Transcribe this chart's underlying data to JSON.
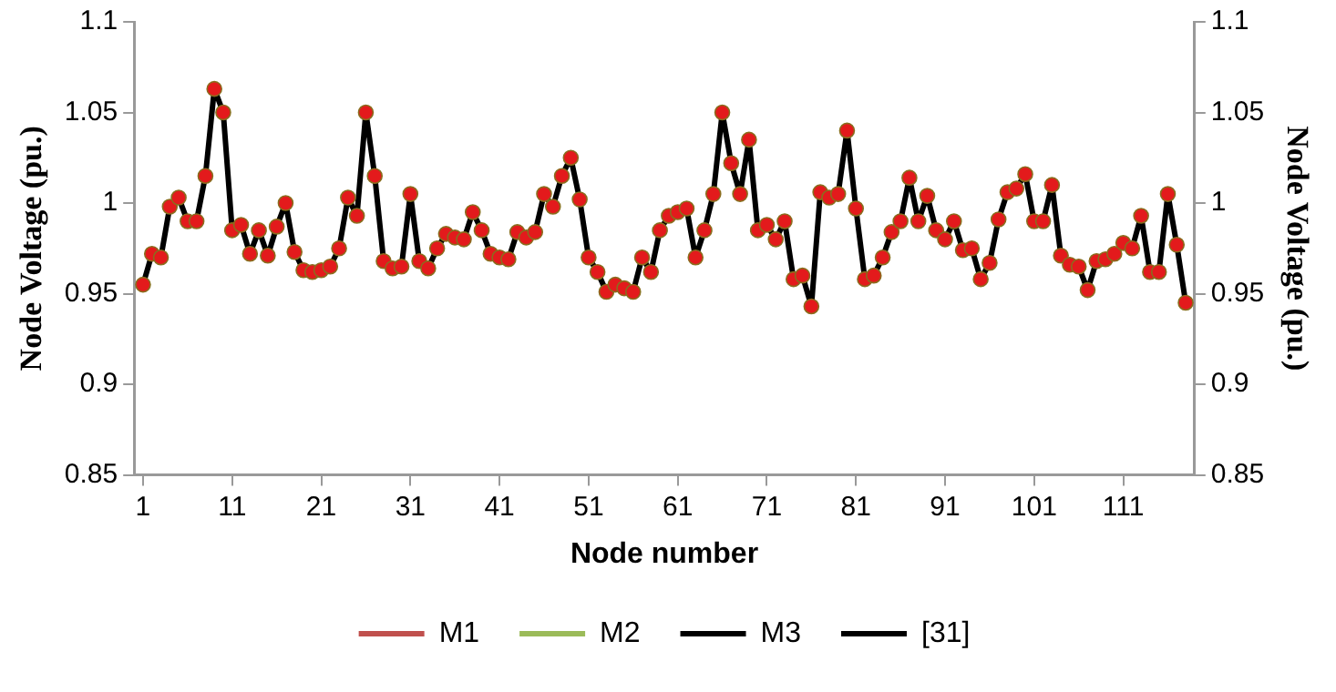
{
  "chart_data": {
    "type": "line",
    "xlabel": "Node number",
    "ylabel": "Node Voltage (pu.)",
    "y2label": "Node Voltage (pu.)",
    "x": [
      1,
      2,
      3,
      4,
      5,
      6,
      7,
      8,
      9,
      10,
      11,
      12,
      13,
      14,
      15,
      16,
      17,
      18,
      19,
      20,
      21,
      22,
      23,
      24,
      25,
      26,
      27,
      28,
      29,
      30,
      31,
      32,
      33,
      34,
      35,
      36,
      37,
      38,
      39,
      40,
      41,
      42,
      43,
      44,
      45,
      46,
      47,
      48,
      49,
      50,
      51,
      52,
      53,
      54,
      55,
      56,
      57,
      58,
      59,
      60,
      61,
      62,
      63,
      64,
      65,
      66,
      67,
      68,
      69,
      70,
      71,
      72,
      73,
      74,
      75,
      76,
      77,
      78,
      79,
      80,
      81,
      82,
      83,
      84,
      85,
      86,
      87,
      88,
      89,
      90,
      91,
      92,
      93,
      94,
      95,
      96,
      97,
      98,
      99,
      100,
      101,
      102,
      103,
      104,
      105,
      106,
      107,
      108,
      109,
      110,
      111,
      112,
      113,
      114,
      115,
      116,
      117,
      118
    ],
    "xlim": [
      0,
      119
    ],
    "xticks": [
      1,
      11,
      21,
      31,
      41,
      51,
      61,
      71,
      81,
      91,
      101,
      111
    ],
    "ylim": [
      0.85,
      1.1
    ],
    "yticks": [
      0.85,
      0.9,
      0.95,
      1,
      1.05,
      1.1
    ],
    "y2lim": [
      0.85,
      1.1
    ],
    "y2ticks": [
      0.85,
      0.9,
      0.95,
      1,
      1.05,
      1.1
    ],
    "grid": false,
    "legend": "bottom",
    "series": [
      {
        "name": "M1",
        "color": "#c0504d",
        "marker": "square",
        "values": [
          null,
          null,
          null,
          null,
          null,
          null,
          null,
          null,
          null,
          null,
          null,
          null,
          null,
          null,
          null,
          null,
          null,
          null,
          null,
          null,
          null,
          null,
          null,
          null,
          null,
          null,
          null,
          null,
          null,
          null,
          null,
          null,
          null,
          null,
          null,
          null,
          null,
          null,
          null,
          null,
          null,
          null,
          null,
          null,
          null,
          null,
          null,
          null,
          null,
          null,
          null,
          null,
          null,
          null,
          null,
          null,
          null,
          null,
          null,
          null,
          null,
          null,
          null,
          null,
          null,
          null,
          null,
          null,
          null,
          null,
          null,
          null,
          null,
          null,
          null,
          null,
          null,
          null,
          null,
          null,
          null,
          null,
          null,
          null,
          null,
          null,
          null,
          null,
          null,
          null,
          null,
          null,
          null,
          null,
          null,
          null,
          null,
          null,
          null,
          null,
          null,
          null,
          null,
          null,
          null,
          null,
          null,
          null,
          null,
          null,
          null,
          null,
          null,
          null,
          null,
          null,
          null,
          null
        ]
      },
      {
        "name": "M2",
        "color": "#9bbb59",
        "marker": "triangle",
        "values": [
          null,
          null,
          null,
          null,
          null,
          null,
          null,
          null,
          null,
          null,
          null,
          null,
          null,
          null,
          null,
          null,
          null,
          null,
          null,
          null,
          null,
          null,
          null,
          null,
          null,
          null,
          null,
          null,
          null,
          null,
          null,
          null,
          null,
          null,
          null,
          null,
          null,
          null,
          null,
          null,
          null,
          null,
          null,
          null,
          null,
          null,
          null,
          null,
          null,
          null,
          null,
          null,
          null,
          null,
          null,
          null,
          null,
          null,
          null,
          null,
          null,
          null,
          null,
          null,
          null,
          null,
          null,
          null,
          null,
          null,
          null,
          null,
          null,
          null,
          null,
          null,
          null,
          null,
          null,
          null,
          null,
          null,
          null,
          null,
          null,
          null,
          null,
          null,
          null,
          null,
          null,
          null,
          null,
          null,
          null,
          null,
          null,
          null,
          null,
          null,
          null,
          null,
          null,
          null,
          null,
          null,
          null,
          null,
          null,
          null,
          null,
          null,
          null,
          null,
          null,
          null,
          null,
          null
        ]
      },
      {
        "name": "M3",
        "color": "#000000",
        "marker": "circle",
        "values": [
          null,
          null,
          null,
          null,
          null,
          null,
          null,
          null,
          null,
          null,
          null,
          null,
          null,
          null,
          null,
          null,
          null,
          null,
          null,
          null,
          null,
          null,
          null,
          null,
          null,
          null,
          null,
          null,
          null,
          null,
          null,
          null,
          null,
          null,
          null,
          null,
          null,
          null,
          null,
          null,
          null,
          null,
          null,
          null,
          null,
          null,
          null,
          null,
          null,
          null,
          null,
          null,
          null,
          null,
          null,
          null,
          null,
          null,
          null,
          null,
          null,
          null,
          null,
          null,
          null,
          null,
          null,
          null,
          null,
          null,
          null,
          null,
          null,
          null,
          null,
          null,
          null,
          null,
          null,
          null,
          null,
          null,
          null,
          null,
          null,
          null,
          null,
          null,
          null,
          null,
          null,
          null,
          null,
          null,
          null,
          null,
          null,
          null,
          null,
          null,
          null,
          null,
          null,
          null,
          null,
          null,
          null,
          null,
          null,
          null,
          null,
          null,
          null,
          null,
          null,
          null,
          null,
          null
        ]
      },
      {
        "name": "[31]",
        "color": "#000000",
        "marker": "circle",
        "colors": [
          "#e31a1c",
          "#e31a1c",
          "#e31a1c",
          "#e31a1c",
          "#e31a1c",
          "#e31a1c",
          "#e31a1c",
          "#e31a1c",
          "#e31a1c",
          "#e31a1c",
          "#e31a1c",
          "#e31a1c",
          "#e31a1c",
          "#e31a1c",
          "#e31a1c",
          "#e31a1c",
          "#e31a1c",
          "#e31a1c",
          "#e31a1c",
          "#e31a1c",
          "#e31a1c",
          "#e31a1c",
          "#e31a1c",
          "#e31a1c",
          "#e31a1c",
          "#e31a1c",
          "#e31a1c",
          "#e31a1c",
          "#e31a1c",
          "#e31a1c",
          "#e31a1c",
          "#e31a1c",
          "#e31a1c",
          "#e31a1c",
          "#e31a1c",
          "#e31a1c",
          "#e31a1c",
          "#e31a1c",
          "#e31a1c",
          "#e31a1c",
          "#e31a1c",
          "#e31a1c",
          "#e31a1c",
          "#e31a1c",
          "#e31a1c",
          "#e31a1c",
          "#e31a1c",
          "#e31a1c",
          "#e31a1c",
          "#e31a1c",
          "#e31a1c",
          "#e31a1c",
          "#e31a1c",
          "#e31a1c",
          "#e31a1c",
          "#e31a1c",
          "#e31a1c",
          "#e31a1c",
          "#e31a1c",
          "#e31a1c",
          "#e31a1c",
          "#e31a1c",
          "#e31a1c",
          "#e31a1c",
          "#e31a1c",
          "#e31a1c",
          "#e31a1c",
          "#e31a1c",
          "#e31a1c",
          "#e31a1c",
          "#e31a1c",
          "#e31a1c",
          "#e31a1c",
          "#e31a1c",
          "#e31a1c",
          "#e31a1c",
          "#e31a1c",
          "#e31a1c",
          "#e31a1c",
          "#e31a1c",
          "#e31a1c",
          "#e31a1c",
          "#e31a1c",
          "#e31a1c",
          "#e31a1c",
          "#e31a1c",
          "#e31a1c",
          "#e31a1c",
          "#e31a1c",
          "#e31a1c",
          "#e31a1c",
          "#e31a1c",
          "#e31a1c",
          "#e31a1c",
          "#e31a1c",
          "#e31a1c",
          "#e31a1c",
          "#e31a1c",
          "#e31a1c",
          "#e31a1c",
          "#e31a1c",
          "#e31a1c",
          "#e31a1c",
          "#e31a1c",
          "#e31a1c",
          "#e31a1c",
          "#e31a1c",
          "#e31a1c",
          "#e31a1c",
          "#e31a1c",
          "#e31a1c",
          "#e31a1c",
          "#e31a1c",
          "#e31a1c",
          "#e31a1c",
          "#e31a1c",
          "#e31a1c",
          "#e31a1c"
        ],
        "values": [
          0.955,
          0.972,
          0.97,
          0.998,
          1.003,
          0.99,
          0.99,
          1.015,
          1.063,
          1.05,
          0.985,
          0.988,
          0.972,
          0.985,
          0.971,
          0.987,
          1.0,
          0.973,
          0.963,
          0.962,
          0.963,
          0.965,
          0.975,
          1.003,
          0.993,
          1.05,
          1.015,
          0.968,
          0.964,
          0.965,
          1.005,
          0.968,
          0.964,
          0.975,
          0.983,
          0.981,
          0.98,
          0.995,
          0.985,
          0.972,
          0.97,
          0.969,
          0.984,
          0.981,
          0.984,
          1.005,
          0.998,
          1.015,
          1.025,
          1.002,
          0.97,
          0.962,
          0.951,
          0.955,
          0.953,
          0.951,
          0.97,
          0.962,
          0.985,
          0.993,
          0.995,
          0.997,
          0.97,
          0.985,
          1.005,
          1.05,
          1.022,
          1.005,
          1.035,
          0.985,
          0.988,
          0.98,
          0.99,
          0.958,
          0.96,
          0.943,
          1.006,
          1.003,
          1.005,
          1.04,
          0.997,
          0.958,
          0.96,
          0.97,
          0.984,
          0.99,
          1.014,
          0.99,
          1.004,
          0.985,
          0.98,
          0.99,
          0.974,
          0.975,
          0.958,
          0.967,
          0.991,
          1.006,
          1.008,
          1.016,
          0.99,
          0.99,
          1.01,
          0.971,
          0.966,
          0.965,
          0.952,
          0.968,
          0.969,
          0.972,
          0.978,
          0.975,
          0.993,
          0.962,
          0.962,
          1.005,
          0.977,
          0.945
        ]
      }
    ]
  }
}
